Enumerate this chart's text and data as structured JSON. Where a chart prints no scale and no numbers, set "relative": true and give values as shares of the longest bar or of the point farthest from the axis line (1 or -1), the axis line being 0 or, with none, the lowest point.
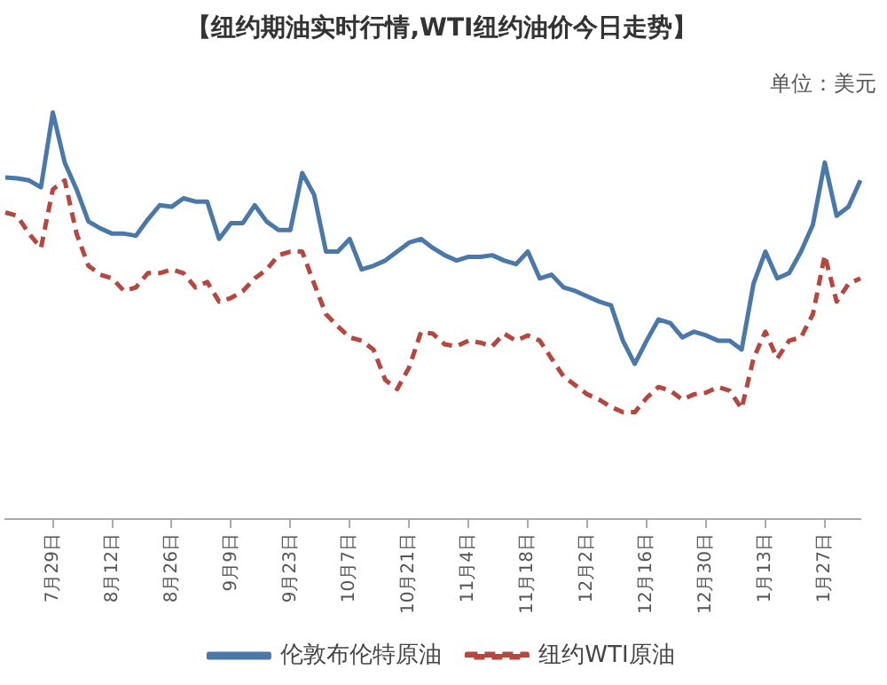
{
  "chart_data": {
    "type": "line",
    "title": "【纽约期油实时行情,WTI纽约油价今日走势】",
    "relative": true,
    "legend": "bottom",
    "marker": "none",
    "annotations": [
      "单位：美元"
    ],
    "categories": [
      null,
      null,
      null,
      null,
      "7月29日",
      null,
      null,
      null,
      null,
      "8月12日",
      null,
      null,
      null,
      null,
      "8月26日",
      null,
      null,
      null,
      null,
      "9月9日",
      null,
      null,
      null,
      null,
      "9月23日",
      null,
      null,
      null,
      null,
      "10月7日",
      null,
      null,
      null,
      null,
      "10月21日",
      null,
      null,
      null,
      null,
      "11月4日",
      null,
      null,
      null,
      null,
      "11月18日",
      null,
      null,
      null,
      null,
      "12月2日",
      null,
      null,
      null,
      null,
      "12月16日",
      null,
      null,
      null,
      null,
      "12月30日",
      null,
      null,
      null,
      null,
      "1月13日",
      null,
      null,
      null,
      null,
      "1月27日",
      null,
      null,
      null
    ],
    "series": [
      {
        "name": "伦敦布伦特原油",
        "color": "#4a78a8",
        "line_style": "solid",
        "values": [
          0.84,
          0.838,
          0.833,
          0.816,
          1,
          0.877,
          0.811,
          0.732,
          0.715,
          0.702,
          0.702,
          0.697,
          0.737,
          0.772,
          0.768,
          0.789,
          0.781,
          0.781,
          0.689,
          0.728,
          0.728,
          0.772,
          0.732,
          0.711,
          0.711,
          0.851,
          0.798,
          0.658,
          0.658,
          0.689,
          0.614,
          0.623,
          0.636,
          0.658,
          0.68,
          0.689,
          0.667,
          0.649,
          0.636,
          0.645,
          0.645,
          0.649,
          0.636,
          0.627,
          0.658,
          0.592,
          0.601,
          0.57,
          0.561,
          0.548,
          0.535,
          0.526,
          0.439,
          0.382,
          0.439,
          0.491,
          0.482,
          0.447,
          0.461,
          0.452,
          0.439,
          0.439,
          0.417,
          0.579,
          0.658,
          0.592,
          0.605,
          0.658,
          0.724,
          0.877,
          0.746,
          0.768,
          0.833
        ]
      },
      {
        "name": "纽约WTI原油",
        "color": "#b5473f",
        "line_style": "dashed",
        "values": [
          0.754,
          0.746,
          0.702,
          0.667,
          0.811,
          0.833,
          0.702,
          0.623,
          0.601,
          0.592,
          0.561,
          0.57,
          0.605,
          0.605,
          0.614,
          0.605,
          0.57,
          0.583,
          0.535,
          0.544,
          0.561,
          0.592,
          0.614,
          0.649,
          0.658,
          0.658,
          0.579,
          0.504,
          0.474,
          0.447,
          0.439,
          0.417,
          0.342,
          0.32,
          0.373,
          0.46,
          0.456,
          0.43,
          0.425,
          0.439,
          0.434,
          0.425,
          0.456,
          0.439,
          0.452,
          0.439,
          0.395,
          0.351,
          0.329,
          0.307,
          0.294,
          0.276,
          0.263,
          0.263,
          0.298,
          0.325,
          0.316,
          0.294,
          0.307,
          0.311,
          0.325,
          0.316,
          0.272,
          0.395,
          0.461,
          0.395,
          0.439,
          0.447,
          0.504,
          0.649,
          0.535,
          0.579,
          0.592
        ]
      }
    ]
  }
}
